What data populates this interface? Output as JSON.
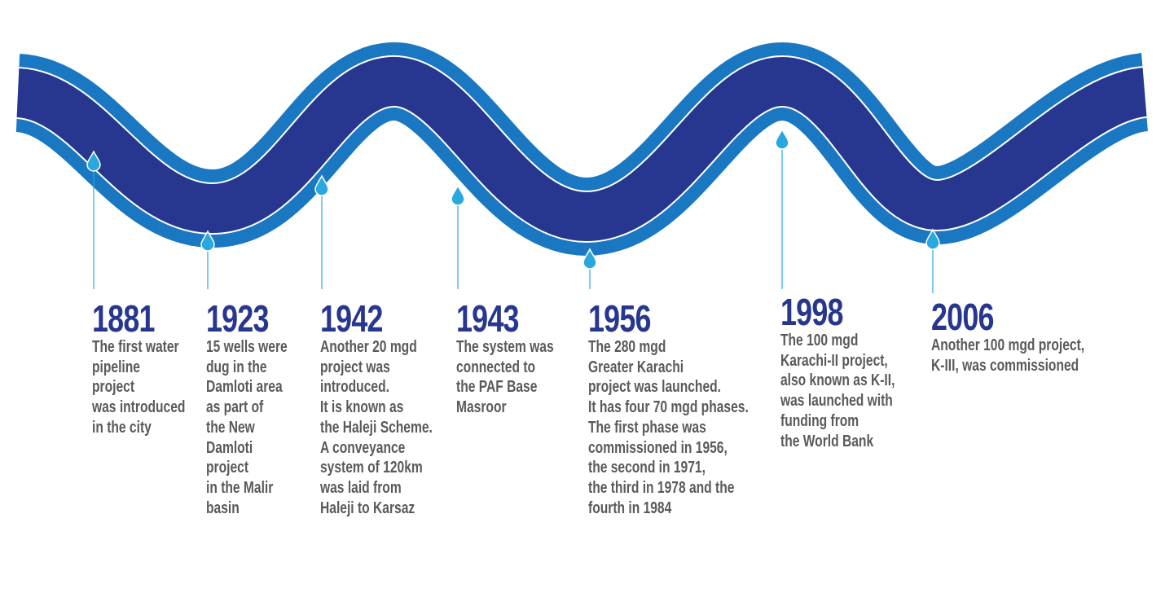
{
  "events": [
    {
      "year": "1881",
      "lines": [
        "The first water",
        "pipeline",
        "project",
        "was introduced",
        "in the city"
      ]
    },
    {
      "year": "1923",
      "lines": [
        "15 wells were",
        "dug in the",
        "Damloti area",
        "as part of",
        "the New",
        "Damloti",
        "project",
        "in the Malir",
        "basin"
      ]
    },
    {
      "year": "1942",
      "lines": [
        "Another 20 mgd",
        "project was",
        "introduced.",
        "It is known as",
        "the Haleji Scheme.",
        "A conveyance",
        "system of 120km",
        "was laid from",
        "Haleji to Karsaz"
      ]
    },
    {
      "year": "1943",
      "lines": [
        "The system was",
        "connected to",
        "the PAF Base",
        "Masroor"
      ]
    },
    {
      "year": "1956",
      "lines": [
        "The 280 mgd",
        "Greater Karachi",
        "project was launched.",
        "It has four 70 mgd phases.",
        "The first phase was",
        "commissioned in 1956,",
        "the second in 1971,",
        "the third in 1978 and the",
        "fourth in 1984"
      ]
    },
    {
      "year": "1998",
      "lines": [
        "The 100 mgd",
        "Karachi-II project,",
        "also known as K-II,",
        "was launched with",
        "funding from",
        "the World Bank"
      ]
    },
    {
      "year": "2006",
      "lines": [
        "Another 100 mgd project,",
        "K-III, was commissioned"
      ]
    }
  ]
}
